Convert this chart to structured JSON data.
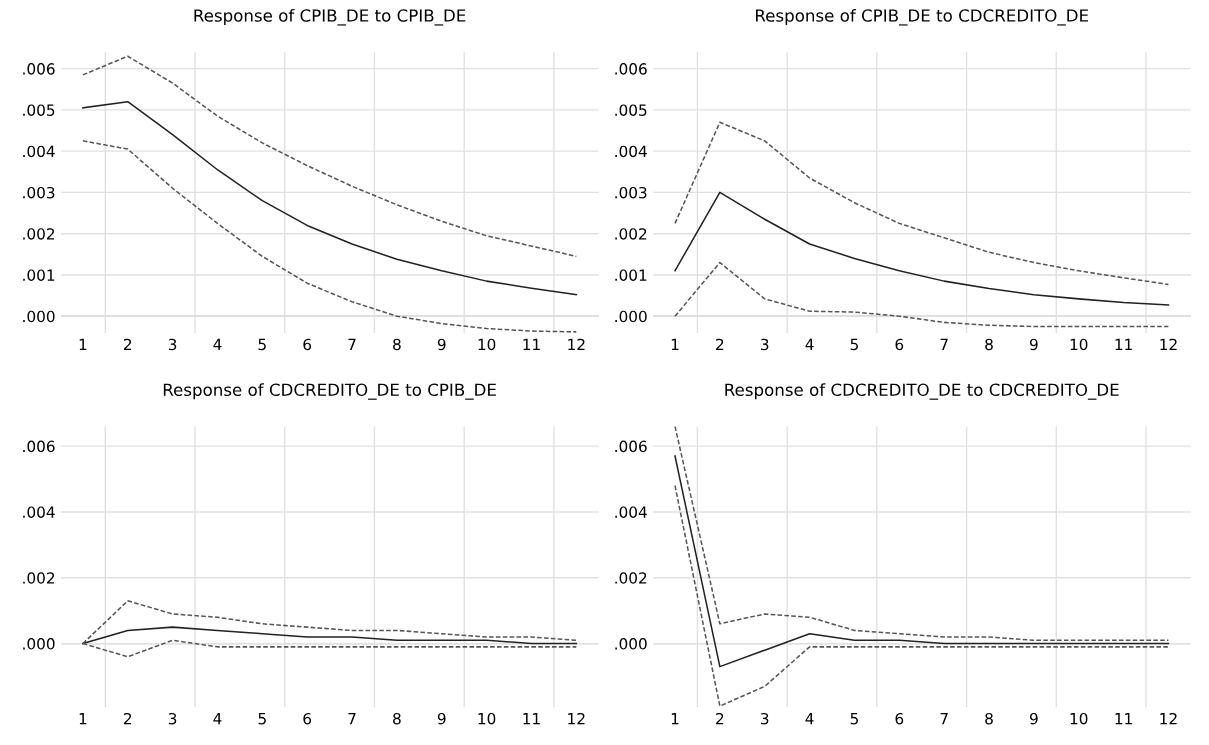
{
  "chart_data": [
    {
      "type": "line",
      "title": "Response of CPIB_DE to CPIB_DE",
      "categories": [
        "1",
        "2",
        "3",
        "4",
        "5",
        "6",
        "7",
        "8",
        "9",
        "10",
        "11",
        "12"
      ],
      "ylim": [
        -0.00042,
        0.0064
      ],
      "yticks": [
        {
          "value": 0,
          "label": ".000"
        },
        {
          "value": 0.001,
          "label": ".001"
        },
        {
          "value": 0.002,
          "label": ".002"
        },
        {
          "value": 0.003,
          "label": ".003"
        },
        {
          "value": 0.004,
          "label": ".004"
        },
        {
          "value": 0.005,
          "label": ".005"
        },
        {
          "value": 0.006,
          "label": ".006"
        }
      ],
      "grid": true,
      "legend": false,
      "series": [
        {
          "color": "#222222",
          "line_style": "solid",
          "values": [
            0.00505,
            0.0052,
            0.0044,
            0.00355,
            0.0028,
            0.0022,
            0.00175,
            0.00138,
            0.0011,
            0.00085,
            0.00068,
            0.00052
          ]
        },
        {
          "color": "#555555",
          "line_style": "dashed",
          "values": [
            0.00585,
            0.0063,
            0.00565,
            0.00485,
            0.0042,
            0.00365,
            0.00315,
            0.0027,
            0.0023,
            0.00195,
            0.0017,
            0.00145
          ]
        },
        {
          "color": "#555555",
          "line_style": "dashed",
          "values": [
            0.00425,
            0.00405,
            0.0031,
            0.00225,
            0.00145,
            0.0008,
            0.00035,
            0.0,
            -0.00018,
            -0.0003,
            -0.00036,
            -0.00038
          ]
        }
      ]
    },
    {
      "type": "line",
      "title": "Response of CPIB_DE to CDCREDITO_DE",
      "categories": [
        "1",
        "2",
        "3",
        "4",
        "5",
        "6",
        "7",
        "8",
        "9",
        "10",
        "11",
        "12"
      ],
      "ylim": [
        -0.00042,
        0.0064
      ],
      "yticks": [
        {
          "value": 0,
          "label": ".000"
        },
        {
          "value": 0.001,
          "label": ".001"
        },
        {
          "value": 0.002,
          "label": ".002"
        },
        {
          "value": 0.003,
          "label": ".003"
        },
        {
          "value": 0.004,
          "label": ".004"
        },
        {
          "value": 0.005,
          "label": ".005"
        },
        {
          "value": 0.006,
          "label": ".006"
        }
      ],
      "grid": true,
      "legend": false,
      "series": [
        {
          "color": "#222222",
          "line_style": "solid",
          "values": [
            0.0011,
            0.003,
            0.00235,
            0.00175,
            0.0014,
            0.0011,
            0.00085,
            0.00067,
            0.00052,
            0.00042,
            0.00033,
            0.00027
          ]
        },
        {
          "color": "#555555",
          "line_style": "dashed",
          "values": [
            0.00225,
            0.0047,
            0.00425,
            0.00335,
            0.00275,
            0.00225,
            0.0019,
            0.00155,
            0.0013,
            0.0011,
            0.00093,
            0.00077
          ]
        },
        {
          "color": "#555555",
          "line_style": "dashed",
          "values": [
            0.0,
            0.0013,
            0.00042,
            0.00012,
            0.0001,
            0.0,
            -0.00015,
            -0.00022,
            -0.00025,
            -0.00025,
            -0.00025,
            -0.00025
          ]
        }
      ]
    },
    {
      "type": "line",
      "title": "Response of CDCREDITO_DE to CPIB_DE",
      "categories": [
        "1",
        "2",
        "3",
        "4",
        "5",
        "6",
        "7",
        "8",
        "9",
        "10",
        "11",
        "12"
      ],
      "ylim": [
        -0.00195,
        0.0066
      ],
      "yticks": [
        {
          "value": 0,
          "label": ".000"
        },
        {
          "value": 0.002,
          "label": ".002"
        },
        {
          "value": 0.004,
          "label": ".004"
        },
        {
          "value": 0.006,
          "label": ".006"
        }
      ],
      "grid": true,
      "legend": false,
      "series": [
        {
          "color": "#222222",
          "line_style": "solid",
          "values": [
            0.0,
            0.0004,
            0.0005,
            0.0004,
            0.0003,
            0.0002,
            0.0002,
            0.0001,
            0.0001,
            0.0001,
            0.0,
            0.0
          ]
        },
        {
          "color": "#555555",
          "line_style": "dashed",
          "values": [
            0.0,
            0.0013,
            0.0009,
            0.0008,
            0.0006,
            0.0005,
            0.0004,
            0.0004,
            0.0003,
            0.0002,
            0.0002,
            0.0001
          ]
        },
        {
          "color": "#555555",
          "line_style": "dashed",
          "values": [
            0.0,
            -0.0004,
            0.0001,
            -0.0001,
            -0.0001,
            -0.0001,
            -0.0001,
            -0.0001,
            -0.0001,
            -0.0001,
            -0.0001,
            -0.0001
          ]
        }
      ]
    },
    {
      "type": "line",
      "title": "Response of CDCREDITO_DE to CDCREDITO_DE",
      "categories": [
        "1",
        "2",
        "3",
        "4",
        "5",
        "6",
        "7",
        "8",
        "9",
        "10",
        "11",
        "12"
      ],
      "ylim": [
        -0.00195,
        0.0066
      ],
      "yticks": [
        {
          "value": 0,
          "label": ".000"
        },
        {
          "value": 0.002,
          "label": ".002"
        },
        {
          "value": 0.004,
          "label": ".004"
        },
        {
          "value": 0.006,
          "label": ".006"
        }
      ],
      "grid": true,
      "legend": false,
      "series": [
        {
          "color": "#222222",
          "line_style": "solid",
          "values": [
            0.0057,
            -0.0007,
            -0.0002,
            0.0003,
            0.0001,
            0.0001,
            0.0,
            0.0,
            0.0,
            0.0,
            0.0,
            0.0
          ]
        },
        {
          "color": "#555555",
          "line_style": "dashed",
          "values": [
            0.0066,
            0.0006,
            0.0009,
            0.0008,
            0.0004,
            0.0003,
            0.0002,
            0.0002,
            0.0001,
            0.0001,
            0.0001,
            0.0001
          ]
        },
        {
          "color": "#555555",
          "line_style": "dashed",
          "values": [
            0.0048,
            -0.0019,
            -0.0013,
            -0.0001,
            -0.0001,
            -0.0001,
            -0.0001,
            -0.0001,
            -0.0001,
            -0.0001,
            -0.0001,
            -0.0001
          ]
        }
      ]
    }
  ]
}
